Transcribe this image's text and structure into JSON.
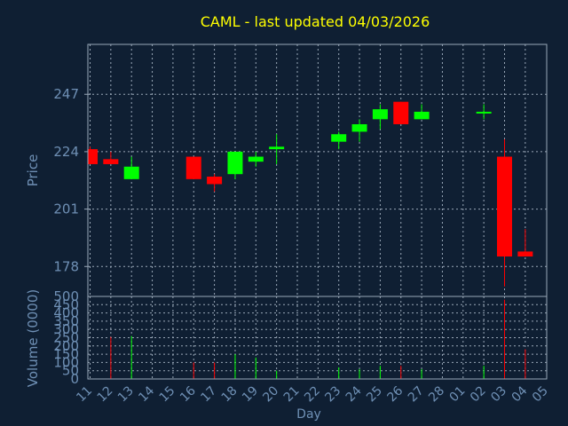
{
  "chart_data": {
    "type": "candlestick",
    "title": "CAML - last updated 04/03/2026",
    "xlabel": "Day",
    "price_panel": {
      "ylabel": "Price",
      "yticks": [
        178,
        201,
        224,
        247
      ],
      "ylim": [
        166,
        267
      ]
    },
    "volume_panel": {
      "ylabel": "Volume (0000)",
      "yticks": [
        0,
        50,
        100,
        150,
        200,
        250,
        300,
        350,
        400,
        450,
        500
      ],
      "ylim": [
        0,
        500
      ]
    },
    "x_ticks": [
      "11",
      "12",
      "13",
      "14",
      "15",
      "16",
      "17",
      "18",
      "19",
      "20",
      "21",
      "22",
      "23",
      "24",
      "25",
      "26",
      "27",
      "28",
      "01",
      "02",
      "03",
      "04",
      "05"
    ],
    "colors": {
      "up": "#00ff00",
      "down": "#ff0000"
    },
    "candles": [
      {
        "day": "11",
        "open": 225,
        "high": 226,
        "low": 219,
        "close": 219,
        "volume": 0
      },
      {
        "day": "12",
        "open": 221,
        "high": 224,
        "low": 219,
        "close": 219,
        "volume": 255
      },
      {
        "day": "13",
        "open": 213,
        "high": 222,
        "low": 213,
        "close": 218,
        "volume": 260
      },
      {
        "day": "16",
        "open": 222,
        "high": 222,
        "low": 213,
        "close": 213,
        "volume": 100
      },
      {
        "day": "17",
        "open": 214,
        "high": 215,
        "low": 208,
        "close": 211,
        "volume": 100
      },
      {
        "day": "18",
        "open": 215,
        "high": 224,
        "low": 213,
        "close": 224,
        "volume": 150
      },
      {
        "day": "19",
        "open": 220,
        "high": 224,
        "low": 218,
        "close": 222,
        "volume": 130
      },
      {
        "day": "20",
        "open": 225,
        "high": 231,
        "low": 219,
        "close": 226,
        "volume": 50
      },
      {
        "day": "23",
        "open": 228,
        "high": 232,
        "low": 225,
        "close": 231,
        "volume": 70
      },
      {
        "day": "24",
        "open": 232,
        "high": 237,
        "low": 228,
        "close": 235,
        "volume": 60
      },
      {
        "day": "25",
        "open": 237,
        "high": 243,
        "low": 233,
        "close": 241,
        "volume": 80
      },
      {
        "day": "26",
        "open": 244,
        "high": 244,
        "low": 235,
        "close": 235,
        "volume": 80
      },
      {
        "day": "27",
        "open": 237,
        "high": 243,
        "low": 237,
        "close": 240,
        "volume": 60
      },
      {
        "day": "02",
        "open": 240,
        "high": 243,
        "low": 237,
        "close": 240,
        "volume": 80
      },
      {
        "day": "03",
        "open": 222,
        "high": 229,
        "low": 170,
        "close": 182,
        "volume": 480
      },
      {
        "day": "04",
        "open": 184,
        "high": 193,
        "low": 182,
        "close": 182,
        "volume": 180
      }
    ]
  }
}
